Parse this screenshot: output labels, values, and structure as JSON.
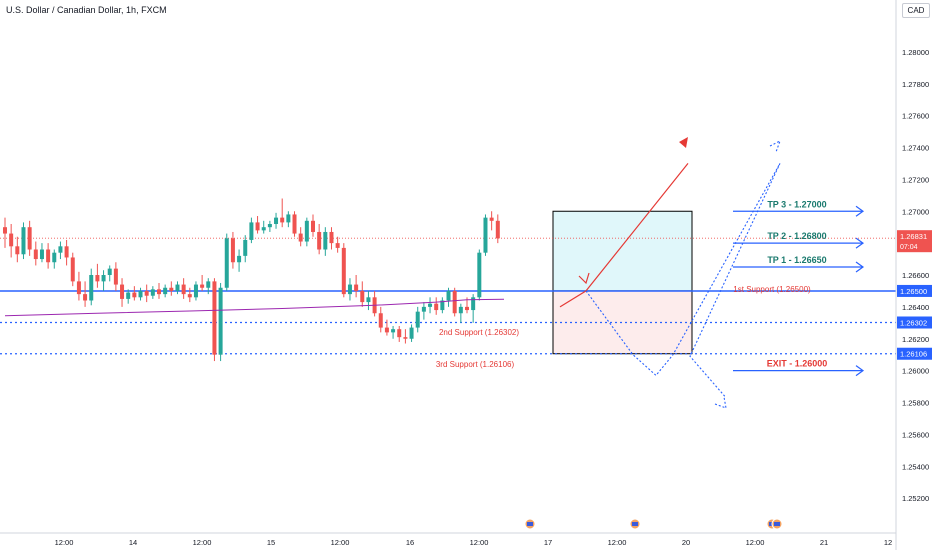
{
  "header": {
    "symbol_title": "U.S. Dollar / Canadian Dollar, 1h, FXCM",
    "currency": "CAD"
  },
  "colors": {
    "bull": "#26a69a",
    "bear": "#ef5350",
    "support_line": "#2962ff",
    "ma_line": "#9c27b0",
    "target_box_fill": "#e0f7fa",
    "stop_box_fill": "#fdecec",
    "tp_text": "#1a7a6e",
    "exit_text": "#e53935",
    "path_red": "#e53935",
    "path_blue": "#2962ff"
  },
  "chart_data": {
    "type": "candlestick",
    "title": "U.S. Dollar / Canadian Dollar, 1h, FXCM",
    "ylim": [
      1.25,
      1.282
    ],
    "y_ticks": [
      "1.28000",
      "1.27800",
      "1.27600",
      "1.27400",
      "1.27200",
      "1.27000",
      "1.26800",
      "1.26600",
      "1.26400",
      "1.26200",
      "1.26000",
      "1.25800",
      "1.25600",
      "1.25400",
      "1.25200"
    ],
    "x_ticks": [
      "12:00",
      "14",
      "12:00",
      "15",
      "12:00",
      "16",
      "12:00",
      "17",
      "12:00",
      "20",
      "12:00",
      "21",
      "12"
    ],
    "price_badges": [
      {
        "label": "1.26831",
        "sub": "07:04",
        "color": "#ef5350",
        "value": 1.26831
      },
      {
        "label": "1.26500",
        "color": "#2962ff",
        "value": 1.265
      },
      {
        "label": "1.26302",
        "color": "#2962ff",
        "value": 1.26302
      },
      {
        "label": "1.26106",
        "color": "#2962ff",
        "value": 1.26106
      }
    ],
    "candles_ohlc": [
      [
        1.269,
        1.2696,
        1.2677,
        1.2686
      ],
      [
        1.2686,
        1.2692,
        1.2671,
        1.2678
      ],
      [
        1.2678,
        1.2684,
        1.2668,
        1.2673
      ],
      [
        1.2673,
        1.2693,
        1.267,
        1.269
      ],
      [
        1.269,
        1.2694,
        1.2672,
        1.2676
      ],
      [
        1.2676,
        1.2681,
        1.2666,
        1.267
      ],
      [
        1.267,
        1.268,
        1.2668,
        1.2676
      ],
      [
        1.2676,
        1.268,
        1.2664,
        1.2668
      ],
      [
        1.2668,
        1.2676,
        1.2664,
        1.2674
      ],
      [
        1.2674,
        1.2681,
        1.267,
        1.2678
      ],
      [
        1.2678,
        1.2682,
        1.2666,
        1.2671
      ],
      [
        1.2671,
        1.2674,
        1.2653,
        1.2656
      ],
      [
        1.2656,
        1.2662,
        1.2644,
        1.2648
      ],
      [
        1.2648,
        1.2656,
        1.264,
        1.2644
      ],
      [
        1.2644,
        1.2664,
        1.2641,
        1.266
      ],
      [
        1.266,
        1.2667,
        1.2652,
        1.2656
      ],
      [
        1.2656,
        1.2663,
        1.265,
        1.266
      ],
      [
        1.266,
        1.2666,
        1.2656,
        1.2664
      ],
      [
        1.2664,
        1.2668,
        1.265,
        1.2654
      ],
      [
        1.2654,
        1.2658,
        1.264,
        1.2645
      ],
      [
        1.2645,
        1.2651,
        1.2642,
        1.2649
      ],
      [
        1.2649,
        1.2653,
        1.2644,
        1.2646
      ],
      [
        1.2646,
        1.2652,
        1.2644,
        1.265
      ],
      [
        1.265,
        1.2654,
        1.2643,
        1.2647
      ],
      [
        1.2647,
        1.2653,
        1.2645,
        1.2651
      ],
      [
        1.2651,
        1.2655,
        1.2645,
        1.2648
      ],
      [
        1.2648,
        1.2654,
        1.2646,
        1.2652
      ],
      [
        1.2652,
        1.2656,
        1.2647,
        1.265
      ],
      [
        1.265,
        1.2656,
        1.2648,
        1.2654
      ],
      [
        1.2654,
        1.2658,
        1.2645,
        1.2648
      ],
      [
        1.2648,
        1.2652,
        1.2643,
        1.2646
      ],
      [
        1.2646,
        1.2656,
        1.2644,
        1.2654
      ],
      [
        1.2654,
        1.266,
        1.265,
        1.2652
      ],
      [
        1.2652,
        1.2658,
        1.2648,
        1.2656
      ],
      [
        1.2656,
        1.2658,
        1.2606,
        1.261
      ],
      [
        1.261,
        1.2655,
        1.2606,
        1.2652
      ],
      [
        1.2652,
        1.2686,
        1.265,
        1.2683
      ],
      [
        1.2683,
        1.2687,
        1.2664,
        1.2668
      ],
      [
        1.2668,
        1.2676,
        1.2662,
        1.2672
      ],
      [
        1.2672,
        1.2685,
        1.2668,
        1.2682
      ],
      [
        1.2682,
        1.2696,
        1.268,
        1.2693
      ],
      [
        1.2693,
        1.2697,
        1.2686,
        1.2688
      ],
      [
        1.2688,
        1.2694,
        1.2686,
        1.269
      ],
      [
        1.269,
        1.2694,
        1.2687,
        1.2692
      ],
      [
        1.2692,
        1.2699,
        1.2689,
        1.2696
      ],
      [
        1.2696,
        1.2708,
        1.269,
        1.2693
      ],
      [
        1.2693,
        1.27,
        1.269,
        1.2698
      ],
      [
        1.2698,
        1.27,
        1.2684,
        1.2686
      ],
      [
        1.2686,
        1.269,
        1.2678,
        1.2681
      ],
      [
        1.2681,
        1.2696,
        1.2678,
        1.2694
      ],
      [
        1.2694,
        1.2698,
        1.2684,
        1.2687
      ],
      [
        1.2687,
        1.2692,
        1.2673,
        1.2676
      ],
      [
        1.2676,
        1.269,
        1.2672,
        1.2687
      ],
      [
        1.2687,
        1.269,
        1.2676,
        1.268
      ],
      [
        1.268,
        1.2684,
        1.2674,
        1.2677
      ],
      [
        1.2677,
        1.268,
        1.2646,
        1.2648
      ],
      [
        1.2648,
        1.2658,
        1.2644,
        1.2654
      ],
      [
        1.2654,
        1.266,
        1.2646,
        1.265
      ],
      [
        1.265,
        1.2656,
        1.264,
        1.2643
      ],
      [
        1.2643,
        1.265,
        1.2638,
        1.2646
      ],
      [
        1.2646,
        1.265,
        1.2634,
        1.2636
      ],
      [
        1.2636,
        1.264,
        1.2624,
        1.2627
      ],
      [
        1.2627,
        1.2632,
        1.2622,
        1.2624
      ],
      [
        1.2624,
        1.2628,
        1.262,
        1.2626
      ],
      [
        1.2626,
        1.2628,
        1.2618,
        1.2621
      ],
      [
        1.2621,
        1.2626,
        1.2617,
        1.262
      ],
      [
        1.262,
        1.2629,
        1.2618,
        1.2627
      ],
      [
        1.2627,
        1.264,
        1.2624,
        1.2637
      ],
      [
        1.2637,
        1.2643,
        1.2632,
        1.264
      ],
      [
        1.264,
        1.2646,
        1.2636,
        1.2642
      ],
      [
        1.2642,
        1.2646,
        1.2635,
        1.2638
      ],
      [
        1.2638,
        1.2646,
        1.2636,
        1.2644
      ],
      [
        1.2644,
        1.2652,
        1.264,
        1.265
      ],
      [
        1.265,
        1.2652,
        1.2634,
        1.2636
      ],
      [
        1.2636,
        1.2642,
        1.263,
        1.264
      ],
      [
        1.264,
        1.2646,
        1.2636,
        1.2638
      ],
      [
        1.2638,
        1.2648,
        1.263,
        1.2646
      ],
      [
        1.2646,
        1.2676,
        1.2644,
        1.2674
      ],
      [
        1.2674,
        1.2698,
        1.2672,
        1.2696
      ],
      [
        1.2696,
        1.27,
        1.2688,
        1.2694
      ],
      [
        1.2694,
        1.2698,
        1.268,
        1.2683
      ]
    ],
    "moving_average": [
      [
        0,
        1.26344
      ],
      [
        15,
        1.2636
      ],
      [
        30,
        1.26374
      ],
      [
        45,
        1.2639
      ],
      [
        60,
        1.2641
      ],
      [
        70,
        1.2643
      ],
      [
        75,
        1.26445
      ],
      [
        81,
        1.26448
      ]
    ],
    "support_lines": [
      {
        "name": "1st Support",
        "value": 1.265,
        "label": "1st Support (1.26500)"
      },
      {
        "name": "2nd Support",
        "value": 1.26302,
        "label": "2nd Support (1.26302)"
      },
      {
        "name": "3rd Support",
        "value": 1.26106,
        "label": "3rd Support (1.26106)"
      }
    ],
    "targets": [
      {
        "label": "TP 3 - 1.27000",
        "value": 1.27
      },
      {
        "label": "TP 2 - 1.26800",
        "value": 1.268
      },
      {
        "label": "TP 1 - 1.26650",
        "value": 1.2665
      },
      {
        "label": "EXIT - 1.26000",
        "value": 1.26
      }
    ],
    "position_box": {
      "entry": 1.265,
      "target": 1.27,
      "stop": 1.26106
    },
    "projected_path_red": [
      [
        1.264,
        0
      ],
      [
        1.265,
        1
      ],
      [
        1.273,
        2
      ]
    ],
    "projected_path_blue": [
      [
        1.265,
        0
      ],
      [
        1.261,
        1
      ],
      [
        1.2597,
        2
      ],
      [
        1.261,
        3
      ],
      [
        1.273,
        4
      ],
      [
        1.2609,
        5
      ],
      [
        1.2583,
        6
      ]
    ]
  }
}
